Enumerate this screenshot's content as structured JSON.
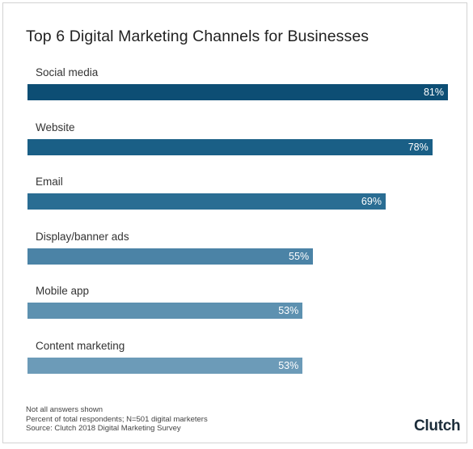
{
  "chart_data": {
    "type": "bar",
    "orientation": "horizontal",
    "title": "Top 6 Digital Marketing Channels for Businesses",
    "categories": [
      "Social media",
      "Website",
      "Email",
      "Display/banner ads",
      "Mobile app",
      "Content marketing"
    ],
    "values": [
      81,
      78,
      69,
      55,
      53,
      53
    ],
    "value_labels": [
      "81%",
      "78%",
      "69%",
      "55%",
      "53%",
      "53%"
    ],
    "bar_colors": [
      "#0d4e74",
      "#1a5f86",
      "#2a6d93",
      "#4b83a6",
      "#5d91b0",
      "#6c9bb8"
    ],
    "xlim": [
      0,
      81
    ],
    "grid": false,
    "legend": "none"
  },
  "notes": [
    "Not all answers shown",
    "Percent of total respondents; N=501 digital marketers",
    "Source: Clutch 2018 Digital Marketing Survey"
  ],
  "logo": "Clutch"
}
